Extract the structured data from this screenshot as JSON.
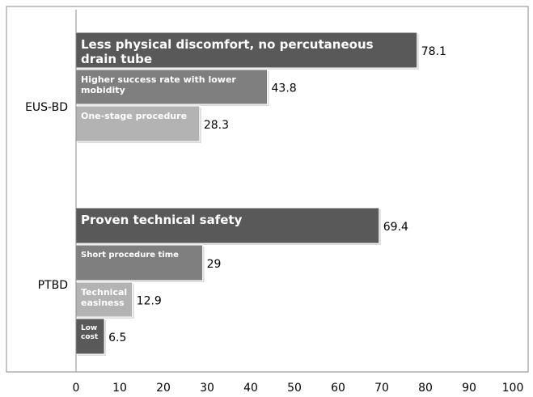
{
  "chart_data": {
    "type": "bar",
    "orientation": "horizontal",
    "xlim": [
      0,
      100
    ],
    "x_ticks": [
      "0",
      "10",
      "20",
      "30",
      "40",
      "50",
      "60",
      "70",
      "80",
      "90",
      "100"
    ],
    "groups": [
      {
        "label": "EUS-BD",
        "bars": [
          {
            "label": "Less physical discomfort, no percutaneous drain tube",
            "value": 78.1,
            "value_label": "78.1",
            "color": "#595959"
          },
          {
            "label": "Higher success rate with lower mobidity",
            "value": 43.8,
            "value_label": "43.8",
            "color": "#7f7f7f"
          },
          {
            "label": "One-stage procedure",
            "value": 28.3,
            "value_label": "28.3",
            "color": "#b3b3b3"
          }
        ]
      },
      {
        "label": "PTBD",
        "bars": [
          {
            "label": "Proven technical safety",
            "value": 69.4,
            "value_label": "69.4",
            "color": "#595959"
          },
          {
            "label": "Short procedure time",
            "value": 29,
            "value_label": "29",
            "color": "#7f7f7f"
          },
          {
            "label": "Technical easiness",
            "value": 12.9,
            "value_label": "12.9",
            "color": "#b3b3b3"
          },
          {
            "label": "Low cost",
            "value": 6.5,
            "value_label": "6.5",
            "color": "#595959"
          }
        ]
      }
    ],
    "grid": false,
    "legend": "none"
  }
}
